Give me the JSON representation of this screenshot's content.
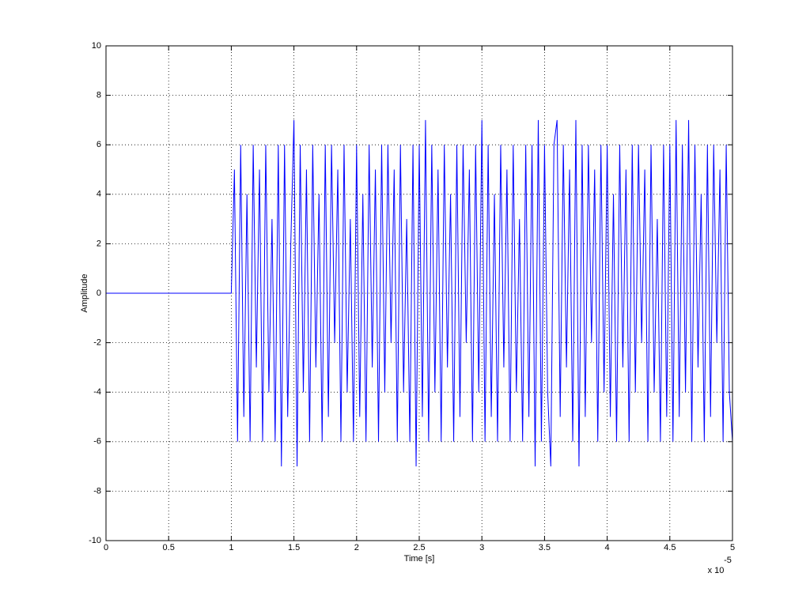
{
  "chart_data": {
    "type": "line",
    "x_label": "Time [s]",
    "y_label": "Amplitude",
    "x_multiplier": {
      "base": "x 10",
      "exponent": "-5"
    },
    "color": "#0000ff",
    "grid": true,
    "xlim": [
      0,
      5
    ],
    "ylim": [
      -10,
      10
    ],
    "xticks": [
      0,
      0.5,
      1,
      1.5,
      2,
      2.5,
      3,
      3.5,
      4,
      4.5,
      5
    ],
    "yticks": [
      -10,
      -8,
      -6,
      -4,
      -2,
      0,
      2,
      4,
      6,
      8,
      10
    ],
    "x": [
      0,
      1,
      1.025,
      1.05,
      1.075,
      1.1,
      1.125,
      1.15,
      1.175,
      1.2,
      1.225,
      1.25,
      1.275,
      1.3,
      1.325,
      1.35,
      1.375,
      1.4,
      1.425,
      1.45,
      1.475,
      1.5,
      1.525,
      1.55,
      1.575,
      1.6,
      1.625,
      1.65,
      1.675,
      1.7,
      1.725,
      1.75,
      1.775,
      1.8,
      1.825,
      1.85,
      1.875,
      1.9,
      1.925,
      1.95,
      1.975,
      2,
      2.025,
      2.05,
      2.075,
      2.1,
      2.125,
      2.15,
      2.175,
      2.2,
      2.225,
      2.25,
      2.275,
      2.3,
      2.325,
      2.35,
      2.375,
      2.4,
      2.425,
      2.45,
      2.475,
      2.5,
      2.525,
      2.55,
      2.575,
      2.6,
      2.625,
      2.65,
      2.675,
      2.7,
      2.725,
      2.75,
      2.775,
      2.8,
      2.825,
      2.85,
      2.875,
      2.9,
      2.925,
      2.95,
      2.975,
      3,
      3.025,
      3.05,
      3.075,
      3.1,
      3.125,
      3.15,
      3.175,
      3.2,
      3.225,
      3.25,
      3.275,
      3.3,
      3.325,
      3.35,
      3.375,
      3.4,
      3.425,
      3.45,
      3.475,
      3.5,
      3.525,
      3.55,
      3.575,
      3.6,
      3.625,
      3.65,
      3.675,
      3.7,
      3.725,
      3.75,
      3.775,
      3.8,
      3.825,
      3.85,
      3.875,
      3.9,
      3.925,
      3.95,
      3.975,
      4,
      4.025,
      4.05,
      4.075,
      4.1,
      4.125,
      4.15,
      4.175,
      4.2,
      4.225,
      4.25,
      4.275,
      4.3,
      4.325,
      4.35,
      4.375,
      4.4,
      4.425,
      4.45,
      4.475,
      4.5,
      4.525,
      4.55,
      4.575,
      4.6,
      4.625,
      4.65,
      4.675,
      4.7,
      4.725,
      4.75,
      4.775,
      4.8,
      4.825,
      4.85,
      4.875,
      4.9,
      4.925,
      4.95,
      4.975,
      5
    ],
    "values": [
      0,
      0,
      5,
      -6,
      6,
      -5,
      4,
      -6,
      6,
      -3,
      5,
      -6,
      6,
      -4,
      3,
      -6,
      6,
      -7,
      6,
      -5,
      2,
      7,
      -7,
      6,
      -4,
      5,
      -6,
      6,
      -3,
      4,
      -6,
      6,
      -5,
      6,
      -2,
      5,
      -6,
      6,
      -4,
      3,
      -6,
      6,
      -5,
      4,
      -6,
      6,
      -3,
      5,
      -6,
      6,
      -4,
      6,
      -2,
      5,
      -6,
      6,
      -4,
      3,
      -6,
      6,
      -7,
      6,
      -5,
      7,
      -6,
      6,
      -4,
      5,
      -6,
      6,
      -3,
      4,
      -6,
      6,
      -5,
      6,
      -2,
      5,
      -6,
      6,
      -4,
      7,
      -6,
      6,
      -5,
      4,
      -6,
      6,
      -3,
      5,
      -6,
      6,
      -4,
      3,
      -6,
      6,
      -5,
      6,
      -7,
      7,
      -6,
      6,
      -4,
      -7,
      6,
      7,
      -5,
      6,
      -3,
      5,
      -6,
      7,
      -7,
      6,
      -5,
      6,
      -2,
      5,
      -6,
      6,
      -4,
      6,
      -5,
      4,
      -6,
      6,
      -3,
      5,
      -6,
      6,
      -4,
      6,
      -2,
      5,
      -6,
      6,
      -4,
      3,
      -6,
      6,
      -5,
      6,
      -6,
      7,
      -5,
      6,
      -4,
      7,
      -6,
      6,
      -3,
      4,
      -6,
      6,
      -5,
      6,
      -2,
      5,
      -6,
      6,
      -4,
      -6
    ]
  }
}
